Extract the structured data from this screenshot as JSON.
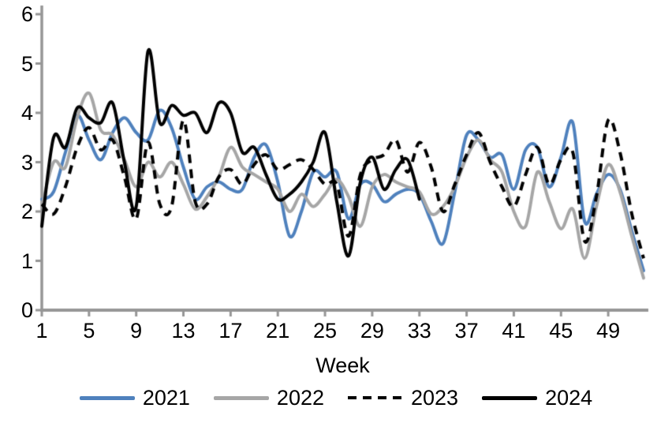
{
  "chart_data": {
    "type": "line",
    "title": "",
    "xlabel": "Week",
    "ylabel": "",
    "x": [
      1,
      2,
      3,
      4,
      5,
      6,
      7,
      8,
      9,
      10,
      11,
      12,
      13,
      14,
      15,
      16,
      17,
      18,
      19,
      20,
      21,
      22,
      23,
      24,
      25,
      26,
      27,
      28,
      29,
      30,
      31,
      32,
      33,
      34,
      35,
      36,
      37,
      38,
      39,
      40,
      41,
      42,
      43,
      44,
      45,
      46,
      47,
      48,
      49,
      50,
      51,
      52
    ],
    "xlim": [
      1,
      52
    ],
    "ylim": [
      0,
      6
    ],
    "yticks": [
      0,
      1,
      2,
      3,
      4,
      5,
      6
    ],
    "xticks": [
      1,
      5,
      9,
      13,
      17,
      21,
      25,
      29,
      33,
      37,
      41,
      45,
      49
    ],
    "grid": false,
    "legend_position": "bottom",
    "axis_color": "#969696",
    "text_color": "#000000",
    "line_smoothing": true,
    "series": [
      {
        "name": "2021",
        "color": "#4F81BD",
        "style": "solid",
        "values": [
          2.25,
          2.4,
          3.2,
          3.95,
          3.45,
          3.05,
          3.6,
          3.9,
          3.6,
          3.45,
          4.05,
          3.7,
          2.9,
          2.25,
          2.5,
          2.6,
          2.45,
          2.45,
          3.1,
          3.35,
          2.6,
          1.5,
          2.0,
          2.8,
          2.7,
          2.8,
          1.85,
          2.55,
          2.55,
          2.2,
          2.35,
          2.45,
          2.35,
          1.8,
          1.35,
          2.4,
          3.55,
          3.45,
          3.1,
          3.15,
          2.45,
          3.25,
          3.3,
          2.5,
          3.1,
          3.8,
          1.8,
          2.35,
          2.75,
          2.45,
          1.6,
          0.8
        ]
      },
      {
        "name": "2022",
        "color": "#A6A6A6",
        "style": "solid",
        "values": [
          2.1,
          3.0,
          2.9,
          3.9,
          4.4,
          3.65,
          3.55,
          3.05,
          2.5,
          3.0,
          2.7,
          3.0,
          2.55,
          2.05,
          2.3,
          2.7,
          3.3,
          2.9,
          2.75,
          2.6,
          2.45,
          2.0,
          2.35,
          2.1,
          2.35,
          2.65,
          2.3,
          1.7,
          2.5,
          2.75,
          2.6,
          2.5,
          2.4,
          1.95,
          2.1,
          2.5,
          3.1,
          3.45,
          3.05,
          2.8,
          2.0,
          1.7,
          2.8,
          2.2,
          1.65,
          2.05,
          1.05,
          2.1,
          2.95,
          2.4,
          1.5,
          0.65
        ]
      },
      {
        "name": "2023",
        "color": "#000000",
        "style": "dashed",
        "values": [
          2.15,
          1.95,
          2.5,
          3.3,
          3.7,
          3.25,
          3.45,
          2.7,
          1.85,
          3.4,
          2.15,
          2.1,
          3.85,
          2.2,
          2.15,
          2.7,
          2.85,
          2.55,
          2.95,
          3.15,
          2.85,
          2.95,
          3.05,
          2.85,
          2.55,
          2.55,
          1.5,
          2.75,
          3.05,
          3.15,
          3.45,
          2.8,
          3.4,
          2.9,
          2.0,
          2.55,
          3.15,
          3.6,
          3.0,
          2.5,
          2.1,
          2.75,
          3.3,
          2.55,
          3.05,
          3.2,
          1.4,
          2.3,
          3.85,
          3.2,
          1.95,
          1.05
        ]
      },
      {
        "name": "2024",
        "color": "#000000",
        "style": "solid",
        "values": [
          1.7,
          3.5,
          3.3,
          4.1,
          3.9,
          3.8,
          4.2,
          3.0,
          2.1,
          5.25,
          3.8,
          4.15,
          3.95,
          4.0,
          3.6,
          4.2,
          4.0,
          3.2,
          3.3,
          2.75,
          2.25,
          2.35,
          2.6,
          3.0,
          3.6,
          2.2,
          1.1,
          2.6,
          3.1,
          2.45,
          2.85,
          3.05,
          2.25,
          null,
          null,
          null,
          null,
          null,
          null,
          null,
          null,
          null,
          null,
          null,
          null,
          null,
          null,
          null,
          null,
          null,
          null,
          null
        ]
      }
    ]
  }
}
